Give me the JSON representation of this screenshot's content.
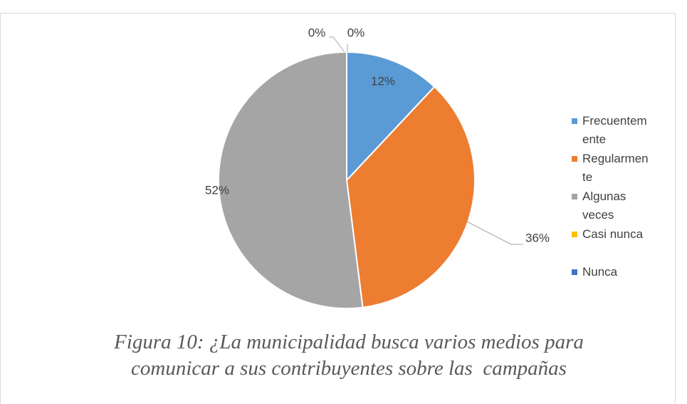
{
  "chart_data": {
    "type": "pie",
    "categories": [
      "Frecuentemente",
      "Regularmente",
      "Algunas veces",
      "Casi nunca",
      "Nunca"
    ],
    "values": [
      12,
      36,
      52,
      0,
      0
    ],
    "value_labels": [
      "12%",
      "36%",
      "52%",
      "0%",
      "0%"
    ],
    "colors": [
      "#5b9bd5",
      "#ed7d31",
      "#a5a5a5",
      "#ffc000",
      "#4472c4"
    ],
    "legend": "right",
    "caption": "Figura 10: ¿La municipalidad busca varios medios para comunicar a sus contribuyentes sobre las  campañas"
  }
}
